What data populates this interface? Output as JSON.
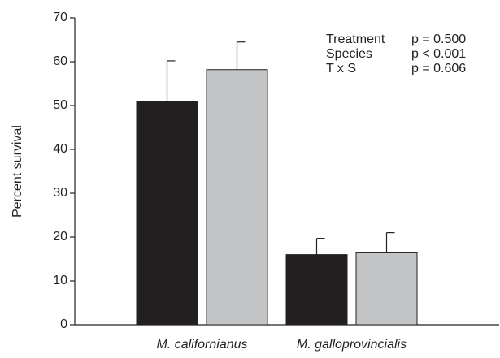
{
  "chart_data": {
    "type": "bar",
    "y_label": "Percent survival",
    "categories": [
      "M. californianus",
      "M. galloprovincialis"
    ],
    "series": [
      {
        "color": "#231f20",
        "values": [
          51,
          16
        ],
        "errors": [
          9.2,
          3.7
        ]
      },
      {
        "color": "#c2c4c6",
        "values": [
          58.2,
          16.4
        ],
        "errors": [
          6.3,
          4.6
        ]
      }
    ],
    "ylim": [
      0,
      70
    ],
    "yticks": [
      0,
      10,
      20,
      30,
      40,
      50,
      60,
      70
    ],
    "annotations": [
      [
        "Treatment",
        "p = 0.500"
      ],
      [
        "Species",
        "p < 0.001"
      ],
      [
        "T x S",
        "p = 0.606"
      ]
    ]
  }
}
